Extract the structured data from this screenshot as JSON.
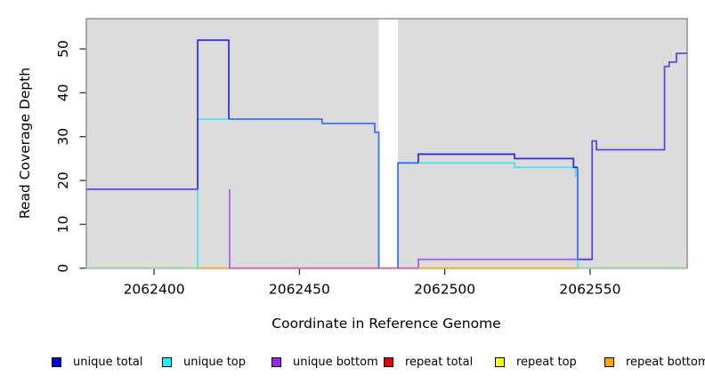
{
  "figure": {
    "xlabel": "Coordinate in Reference Genome",
    "ylabel": "Read Coverage Depth",
    "plot_bg": "#DCDCDC",
    "border_color": "#8a8a8a",
    "tick_color": "#333333",
    "text_color": "#000000",
    "x_ticks": [
      2062400,
      2062450,
      2062500,
      2062550
    ],
    "y_ticks": [
      0,
      10,
      20,
      30,
      40,
      50
    ],
    "xlim": [
      2062376.7,
      2062583.4
    ],
    "ylim": [
      0,
      56.9
    ],
    "gap_band": {
      "from": 2062477.3,
      "to": 2062483.9,
      "color": "#ffffff"
    }
  },
  "legend": {
    "items": [
      {
        "label": "unique total",
        "color": "#0000EE"
      },
      {
        "label": "unique top",
        "color": "#00FFFF"
      },
      {
        "label": "unique bottom",
        "color": "#A020F0"
      },
      {
        "label": "repeat total",
        "color": "#EE0000"
      },
      {
        "label": "repeat top",
        "color": "#FFFF00"
      },
      {
        "label": "repeat bottom",
        "color": "#FFA500"
      }
    ]
  },
  "chart_data": {
    "type": "line",
    "title": "",
    "xlabel": "Coordinate in Reference Genome",
    "ylabel": "Read Coverage Depth",
    "xlim": [
      2062376.7,
      2062583.4
    ],
    "ylim": [
      0,
      56.9
    ],
    "grid": false,
    "legend_position": "bottom",
    "note_masked_region": [
      2062477,
      2062484
    ],
    "series": [
      {
        "name": "unique total",
        "color": "#0000EE",
        "steps": [
          [
            2062377,
            18
          ],
          [
            2062415,
            52
          ],
          [
            2062426,
            34
          ],
          [
            2062458,
            33
          ],
          [
            2062476,
            31
          ],
          [
            2062477,
            0
          ],
          [
            2062484,
            24
          ],
          [
            2062491,
            26
          ],
          [
            2062524,
            25
          ],
          [
            2062544,
            23
          ],
          [
            2062546,
            2
          ],
          [
            2062551,
            29
          ],
          [
            2062552,
            27
          ],
          [
            2062576,
            46
          ],
          [
            2062577,
            47
          ],
          [
            2062580,
            49
          ],
          [
            2062583,
            49
          ]
        ]
      },
      {
        "name": "unique top",
        "color": "#00FFFF",
        "steps": [
          [
            2062377,
            0
          ],
          [
            2062415,
            34
          ],
          [
            2062458,
            33
          ],
          [
            2062476,
            31
          ],
          [
            2062477,
            0
          ],
          [
            2062484,
            24
          ],
          [
            2062524,
            23
          ],
          [
            2062545,
            21
          ],
          [
            2062546,
            0
          ],
          [
            2062583,
            0
          ]
        ]
      },
      {
        "name": "unique bottom",
        "color": "#A020F0",
        "steps": [
          [
            2062377,
            18
          ],
          [
            2062426,
            0
          ],
          [
            2062491,
            2
          ],
          [
            2062551,
            29
          ],
          [
            2062552,
            27
          ],
          [
            2062576,
            46
          ],
          [
            2062577,
            47
          ],
          [
            2062580,
            49
          ],
          [
            2062583,
            49
          ]
        ]
      },
      {
        "name": "repeat total",
        "color": "#EE0000",
        "steps": [
          [
            2062377,
            0
          ],
          [
            2062583,
            0
          ]
        ]
      },
      {
        "name": "repeat top",
        "color": "#FFFF00",
        "steps": [
          [
            2062377,
            0
          ],
          [
            2062583,
            0
          ]
        ]
      },
      {
        "name": "repeat bottom",
        "color": "#FFA500",
        "steps": [
          [
            2062377,
            0
          ],
          [
            2062583,
            0
          ]
        ]
      }
    ],
    "visible_lines": [
      {
        "name": "baseline-green-left",
        "color": "#90CF9F",
        "points": [
          [
            2062376.7,
            0
          ],
          [
            2062415,
            0
          ]
        ]
      },
      {
        "name": "baseline-green-right",
        "color": "#90CF9F",
        "points": [
          [
            2062545.7,
            0
          ],
          [
            2062583.4,
            0
          ]
        ]
      },
      {
        "name": "baseline-pink",
        "color": "#DB5F9C",
        "points": [
          [
            2062425.7,
            0
          ],
          [
            2062490.9,
            0
          ]
        ]
      },
      {
        "name": "baseline-orange-left",
        "color": "#FFA030",
        "points": [
          [
            2062415,
            0
          ],
          [
            2062425.7,
            0
          ]
        ]
      },
      {
        "name": "baseline-orange-right",
        "color": "#FFA021",
        "points": [
          [
            2062490.9,
            0
          ],
          [
            2062545.7,
            0
          ]
        ]
      },
      {
        "name": "purple-drop",
        "color": "#A665E6",
        "points": [
          [
            2062426,
            18
          ],
          [
            2062426,
            0
          ]
        ]
      },
      {
        "name": "purple-low",
        "color": "#A665E6",
        "points": [
          [
            2062490.9,
            0
          ],
          [
            2062490.9,
            2
          ],
          [
            2062550.7,
            2
          ]
        ]
      },
      {
        "name": "cyan-left",
        "color": "#4FE3EE",
        "points": [
          [
            2062415,
            0
          ],
          [
            2062415,
            34
          ],
          [
            2062457.8,
            34
          ]
        ]
      },
      {
        "name": "cyan-right",
        "color": "#4FE3EE",
        "points": [
          [
            2062483.9,
            24
          ],
          [
            2062524,
            24
          ],
          [
            2062524,
            23
          ],
          [
            2062545,
            23
          ],
          [
            2062545,
            21
          ],
          [
            2062545.7,
            21
          ],
          [
            2062545.7,
            0
          ]
        ]
      },
      {
        "name": "royal-mid",
        "color": "#3E72F2",
        "points": [
          [
            2062425.7,
            34
          ],
          [
            2062457.8,
            34
          ],
          [
            2062457.8,
            33
          ],
          [
            2062475.9,
            33
          ],
          [
            2062475.9,
            31
          ],
          [
            2062477.3,
            31
          ],
          [
            2062477.3,
            0
          ]
        ]
      },
      {
        "name": "royal-rise",
        "color": "#3E72F2",
        "points": [
          [
            2062483.9,
            0
          ],
          [
            2062483.9,
            24
          ],
          [
            2062490.9,
            24
          ]
        ]
      },
      {
        "name": "royal-fall",
        "color": "#3E72F2",
        "points": [
          [
            2062545.7,
            23
          ],
          [
            2062545.7,
            2
          ]
        ]
      },
      {
        "name": "navy-box",
        "color": "#3434E8",
        "points": [
          [
            2062415,
            18
          ],
          [
            2062415,
            52
          ],
          [
            2062425.7,
            52
          ],
          [
            2062425.7,
            34
          ]
        ]
      },
      {
        "name": "navy-right",
        "color": "#2F2FE0",
        "points": [
          [
            2062490.9,
            24
          ],
          [
            2062490.9,
            26
          ],
          [
            2062524,
            26
          ],
          [
            2062524,
            25
          ],
          [
            2062544.3,
            25
          ],
          [
            2062544.3,
            23
          ],
          [
            2062545.7,
            23
          ]
        ]
      },
      {
        "name": "violet-left",
        "color": "#5B49DC",
        "points": [
          [
            2062376.7,
            18
          ],
          [
            2062415,
            18
          ]
        ]
      },
      {
        "name": "violet-right",
        "color": "#5B49DC",
        "points": [
          [
            2062545.7,
            2
          ],
          [
            2062550.7,
            2
          ],
          [
            2062550.7,
            29
          ],
          [
            2062552.2,
            29
          ],
          [
            2062552.2,
            27
          ],
          [
            2062575.6,
            27
          ],
          [
            2062575.6,
            46
          ],
          [
            2062577.2,
            46
          ],
          [
            2062577.2,
            47
          ],
          [
            2062579.7,
            47
          ],
          [
            2062579.7,
            49
          ],
          [
            2062583.4,
            49
          ]
        ]
      }
    ]
  }
}
